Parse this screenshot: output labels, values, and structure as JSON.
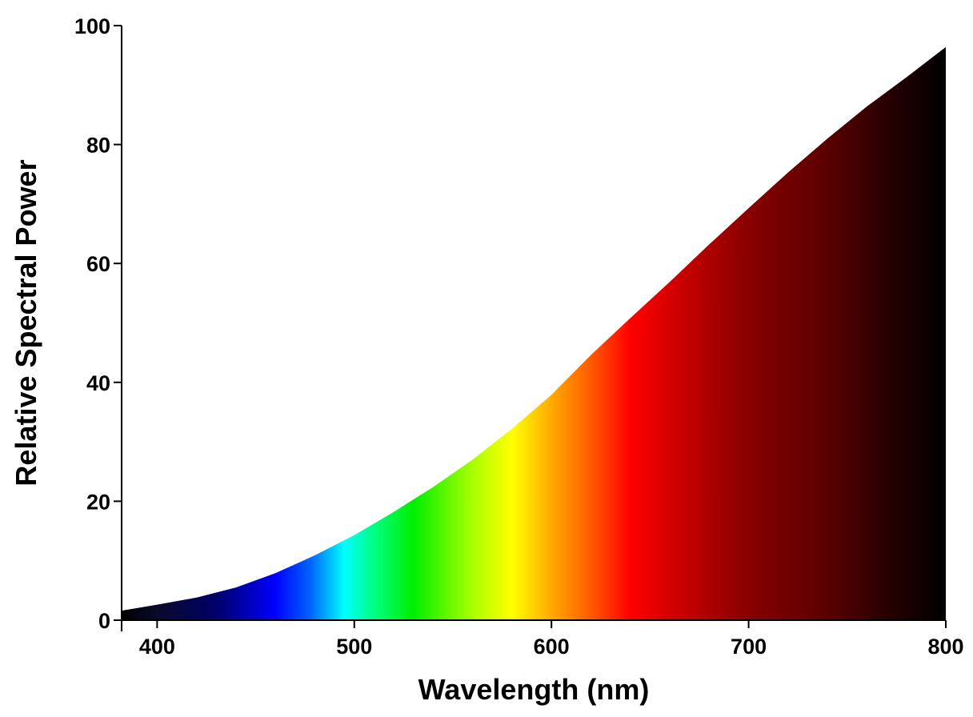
{
  "chart_data": {
    "type": "area",
    "title": "",
    "xlabel": "Wavelength (nm)",
    "ylabel": "Relative Spectral Power",
    "xlim": [
      382,
      800
    ],
    "ylim": [
      0,
      100
    ],
    "xticks": [
      400,
      500,
      600,
      700,
      800
    ],
    "yticks": [
      0,
      20,
      40,
      60,
      80,
      100
    ],
    "grid": false,
    "legend": "none",
    "fill": "visible-spectrum color gradient",
    "series": [
      {
        "x": [
          382,
          400,
          420,
          440,
          460,
          480,
          500,
          520,
          540,
          560,
          580,
          600,
          620,
          640,
          660,
          680,
          700,
          720,
          740,
          760,
          780,
          800
        ],
        "y": [
          1.6,
          2.6,
          3.8,
          5.5,
          7.9,
          10.9,
          14.3,
          18.2,
          22.4,
          27.0,
          32.2,
          37.9,
          44.6,
          50.8,
          56.9,
          63.2,
          69.3,
          75.3,
          81.0,
          86.4,
          91.3,
          96.4
        ]
      }
    ],
    "spectrum_stops": [
      {
        "x": 382,
        "color": "#000000"
      },
      {
        "x": 400,
        "color": "#0a0a2a"
      },
      {
        "x": 430,
        "color": "#00006a"
      },
      {
        "x": 460,
        "color": "#0000ff"
      },
      {
        "x": 478,
        "color": "#0066ff"
      },
      {
        "x": 495,
        "color": "#00ffff"
      },
      {
        "x": 510,
        "color": "#00ff80"
      },
      {
        "x": 530,
        "color": "#00ee00"
      },
      {
        "x": 560,
        "color": "#aaff00"
      },
      {
        "x": 580,
        "color": "#ffff00"
      },
      {
        "x": 600,
        "color": "#ffaa00"
      },
      {
        "x": 620,
        "color": "#ff5a00"
      },
      {
        "x": 640,
        "color": "#ff0000"
      },
      {
        "x": 670,
        "color": "#c00000"
      },
      {
        "x": 700,
        "color": "#880000"
      },
      {
        "x": 740,
        "color": "#5a0000"
      },
      {
        "x": 770,
        "color": "#280000"
      },
      {
        "x": 800,
        "color": "#000000"
      }
    ]
  }
}
